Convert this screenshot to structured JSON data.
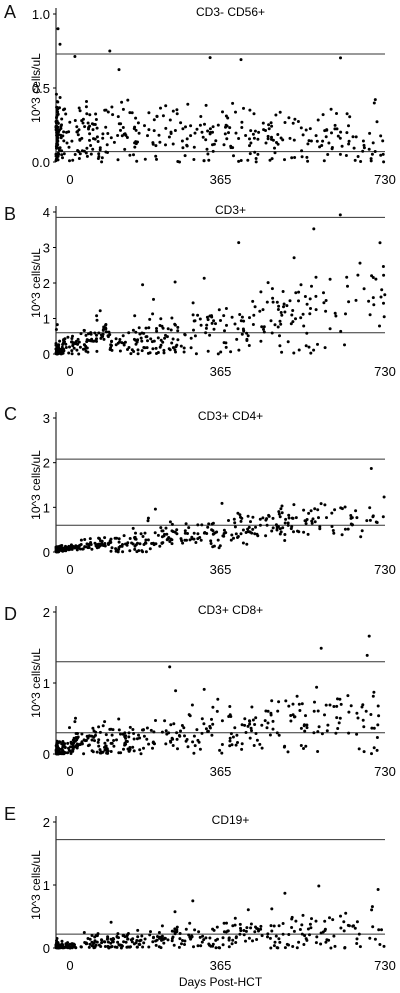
{
  "chart_data": [
    {
      "type": "scatter",
      "panel_letter": "A",
      "title": "CD3- CD56+",
      "ylabel": "10^3 cells/uL",
      "xlabel": "",
      "x_ticks": [
        "0",
        "365",
        "730"
      ],
      "y_ticks": [
        "0.0",
        "0.5",
        "1.0"
      ],
      "xlim": [
        0,
        730
      ],
      "ylim": [
        0,
        1.0
      ],
      "reference_lines": [
        0.73,
        0.07
      ],
      "grid": false,
      "seed": 11,
      "points_description": "dense near 0-300 days, values mostly 0.05-0.45, sparser later"
    },
    {
      "type": "scatter",
      "panel_letter": "B",
      "title": "CD3+",
      "ylabel": "10^3 cells/uL",
      "xlabel": "",
      "x_ticks": [
        "0",
        "365",
        "730"
      ],
      "y_ticks": [
        "0",
        "1",
        "2",
        "3",
        "4"
      ],
      "xlim": [
        0,
        730
      ],
      "ylim": [
        0,
        4
      ],
      "reference_lines": [
        3.85,
        0.6
      ],
      "grid": false,
      "seed": 23
    },
    {
      "type": "scatter",
      "panel_letter": "C",
      "title": "CD3+ CD4+",
      "ylabel": "10^3 cells/uL",
      "xlabel": "",
      "x_ticks": [
        "0",
        "365",
        "730"
      ],
      "y_ticks": [
        "0",
        "1",
        "2",
        "3"
      ],
      "xlim": [
        0,
        730
      ],
      "ylim": [
        0,
        3
      ],
      "reference_lines": [
        2.08,
        0.6
      ],
      "grid": false,
      "seed": 37
    },
    {
      "type": "scatter",
      "panel_letter": "D",
      "title": "CD3+ CD8+",
      "ylabel": "10^3 cells/uL",
      "xlabel": "",
      "x_ticks": [
        "0",
        "365",
        "730"
      ],
      "y_ticks": [
        "0",
        "1",
        "2"
      ],
      "xlim": [
        0,
        730
      ],
      "ylim": [
        0,
        2
      ],
      "reference_lines": [
        1.3,
        0.3
      ],
      "grid": false,
      "seed": 53
    },
    {
      "type": "scatter",
      "panel_letter": "E",
      "title": "CD19+",
      "ylabel": "10^3 cells/uL",
      "xlabel": "Days Post-HCT",
      "x_ticks": [
        "0",
        "365",
        "730"
      ],
      "y_ticks": [
        "0",
        "1",
        "2"
      ],
      "xlim": [
        0,
        730
      ],
      "ylim": [
        0,
        2
      ],
      "reference_lines": [
        1.72,
        0.22
      ],
      "grid": false,
      "seed": 71
    }
  ]
}
